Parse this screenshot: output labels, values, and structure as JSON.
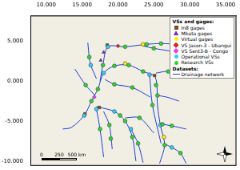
{
  "chart_data": {
    "type": "scatter",
    "xlim": [
      7.8,
      36.5
    ],
    "ylim": [
      -10.6,
      8.2
    ],
    "xticks": [
      {
        "value": 10,
        "label": "10.000"
      },
      {
        "value": 15,
        "label": "15.000"
      },
      {
        "value": 20,
        "label": "20.000"
      },
      {
        "value": 25,
        "label": "25.000"
      },
      {
        "value": 30,
        "label": "30.000"
      },
      {
        "value": 35,
        "label": "35.000"
      }
    ],
    "yticks": [
      {
        "value": -10,
        "label": "-10.000"
      },
      {
        "value": -5,
        "label": "-5.000"
      },
      {
        "value": 0,
        "label": "0.000"
      },
      {
        "value": 5,
        "label": "5.000"
      }
    ],
    "grid": false,
    "legend": "top-right",
    "legend_sections": [
      {
        "title": "VSs and gages:",
        "series": [
          "In8 gages",
          "Mbata gages",
          "Virtual gages",
          "VS Jason-3 - Ubangui",
          "VS Sent3-B - Congo",
          "Operational VSs",
          "Research VSs"
        ]
      },
      {
        "title": "Datasets:",
        "series": [
          "Drainage network"
        ]
      }
    ],
    "scale_bar": [
      "0",
      "250",
      "500 km"
    ],
    "series": [
      {
        "name": "Drainage network",
        "type": "line",
        "line_style": "solid",
        "color": "#1f3fd6",
        "x": [
          25.8,
          26.5,
          25.9,
          25.5,
          25.2,
          23.5,
          21.5,
          19.5,
          18,
          17.2,
          16.3,
          15.3,
          13.5,
          12.3,
          null,
          28.3,
          26,
          24,
          21,
          18.6,
          17.9,
          17.5,
          null,
          28.3,
          27,
          25,
          23.5,
          null,
          15.8,
          16,
          16.2,
          17,
          null,
          22.5,
          22,
          21,
          19.5,
          17,
          null,
          18,
          17.5,
          17,
          null,
          25,
          23,
          21,
          null,
          26,
          24.8,
          24.4,
          null,
          29.5,
          27.5,
          26.2,
          null,
          24.5,
          22,
          19.5,
          18.2,
          null,
          28.3,
          27,
          25.3,
          null,
          29.5,
          28.7,
          27.5,
          26.6,
          null,
          23.5,
          22.8,
          21.8,
          null,
          19.2,
          18.8,
          18,
          null,
          14,
          15.5,
          16.8,
          null,
          28.5,
          26.8,
          25.5
        ],
        "values": [
          -10.3,
          -8,
          -5.5,
          -3,
          0.5,
          1.2,
          2,
          1.9,
          1,
          -1,
          -2.5,
          -4.3,
          -5.8,
          -6,
          null,
          4.6,
          4.7,
          4.6,
          4.3,
          4.3,
          2,
          0,
          null,
          3.6,
          3.8,
          4.1,
          4.4,
          null,
          4.8,
          3,
          2,
          0.3,
          null,
          -10,
          -7,
          -5,
          -3.8,
          -3.2,
          null,
          -9.5,
          -6,
          -3.5,
          null,
          -6.5,
          -4.6,
          -4.6,
          null,
          -7.8,
          -3,
          0.8,
          null,
          -6,
          -5.6,
          -5.4,
          null,
          -2,
          -0.8,
          -0.4,
          0.2,
          null,
          0.5,
          1.2,
          1,
          null,
          -10.3,
          -9,
          -8.3,
          -7.9,
          null,
          -10.2,
          -7.8,
          -6,
          null,
          -8.5,
          -5.5,
          -3.8,
          null,
          1.5,
          -0.5,
          -1.8,
          null,
          -2.5,
          -2,
          -1.8
        ]
      },
      {
        "name": "Research VSs",
        "marker": "circle",
        "color": "#2bd62b",
        "x": [
          25.3,
          23.5,
          21.5,
          19.5,
          17.2,
          16.3,
          26,
          21,
          22,
          21,
          17.5,
          17.9,
          23,
          24.8,
          27.5,
          22,
          19.5,
          27,
          28.7,
          22.8,
          18.8,
          15.5,
          16,
          24,
          26.5,
          25.5,
          20.3,
          25,
          19,
          26.2
        ],
        "values": [
          -0.5,
          1.2,
          2,
          1.9,
          -1,
          -2.5,
          4.7,
          4.3,
          -7,
          -5,
          -6,
          2,
          -4.6,
          -3,
          -5.6,
          -0.8,
          -0.4,
          1.2,
          -9,
          -7.8,
          -5.5,
          -0.5,
          3,
          4.6,
          -8,
          -1.8,
          -4.3,
          4.1,
          -7.2,
          -5.4
        ]
      },
      {
        "name": "Operational VSs",
        "marker": "circle",
        "color": "#33ccff",
        "x": [
          18,
          15.3,
          18.6,
          24.4,
          19.5,
          25.9,
          17,
          21.8,
          27.5,
          16.2
        ],
        "values": [
          1,
          -4.3,
          4.3,
          0.8,
          -3.8,
          -5.5,
          -3.5,
          -6,
          -8.3,
          2
        ]
      },
      {
        "name": "In8 gages",
        "marker": "square",
        "color": "#8b4513",
        "x": [
          15.4,
          25.1,
          18.5,
          17.4
        ],
        "values": [
          -4.1,
          0.7,
          4.5,
          -3.3
        ]
      },
      {
        "name": "Mbata gages",
        "marker": "triangle",
        "color": "#7b2fbe",
        "x": [
          18,
          17.6
        ],
        "values": [
          3.6,
          2.6
        ]
      },
      {
        "name": "Virtual gages",
        "marker": "circle",
        "color": "#ffee00",
        "x": [
          21,
          23.5,
          26.4
        ],
        "values": [
          2.2,
          4.6,
          -7
        ]
      },
      {
        "name": "VS Jason-3 - Ubangui",
        "marker": "diamond",
        "color": "#e31a1c",
        "x": [
          20
        ],
        "values": [
          4.4
        ]
      },
      {
        "name": "VS Sent3-B - Congo",
        "marker": "diamond",
        "color": "#e040fb",
        "x": [
          16.7
        ],
        "values": [
          -2.0
        ]
      }
    ]
  }
}
